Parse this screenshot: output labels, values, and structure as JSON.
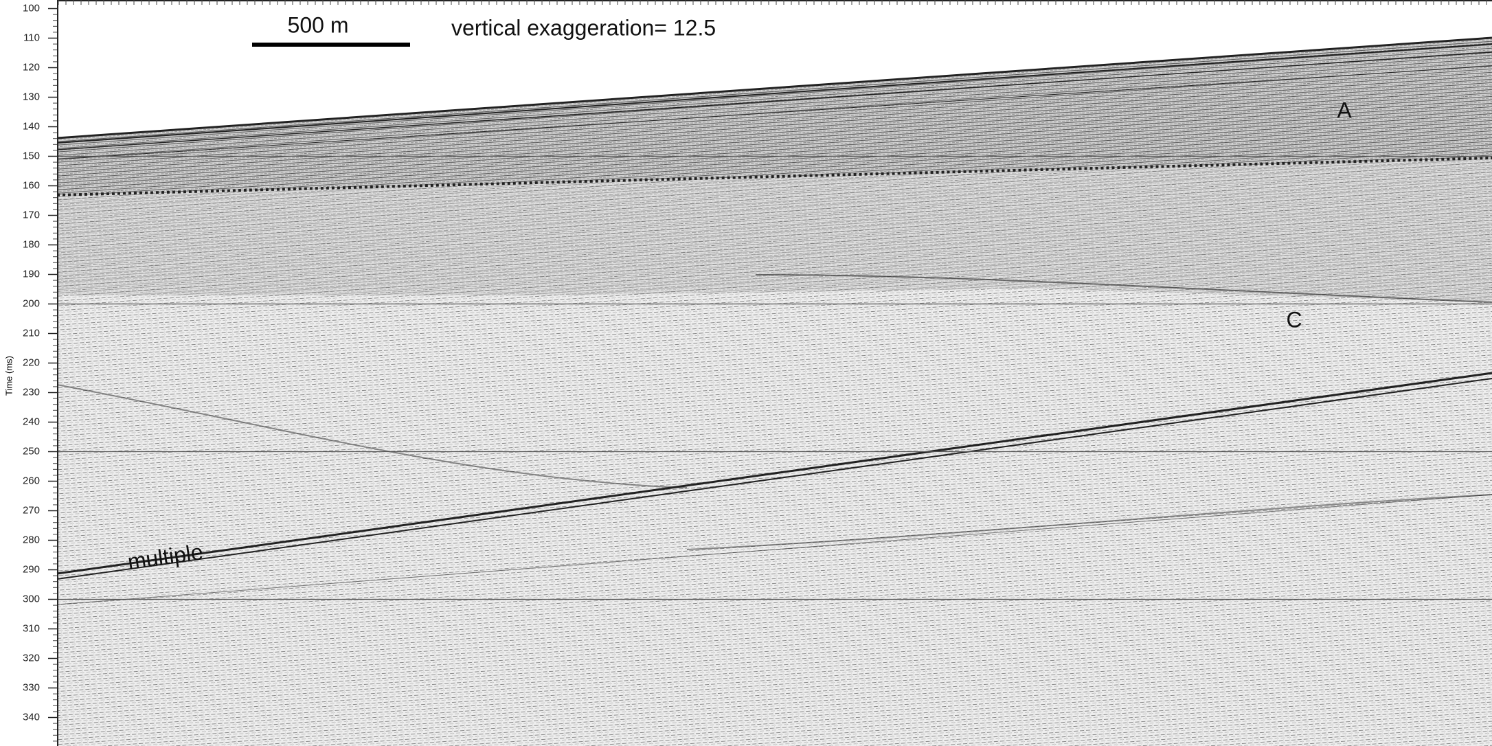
{
  "axis": {
    "label": "Time (ms)",
    "ticks": [
      100,
      110,
      120,
      130,
      140,
      150,
      160,
      170,
      180,
      190,
      200,
      210,
      220,
      230,
      240,
      250,
      260,
      270,
      280,
      290,
      300,
      310,
      320,
      330,
      340
    ]
  },
  "scale_bar": {
    "label": "500 m"
  },
  "annotations": {
    "exaggeration": "vertical exaggeration= 12.5",
    "a": "A",
    "c": "C",
    "multiple": "multiple"
  }
}
